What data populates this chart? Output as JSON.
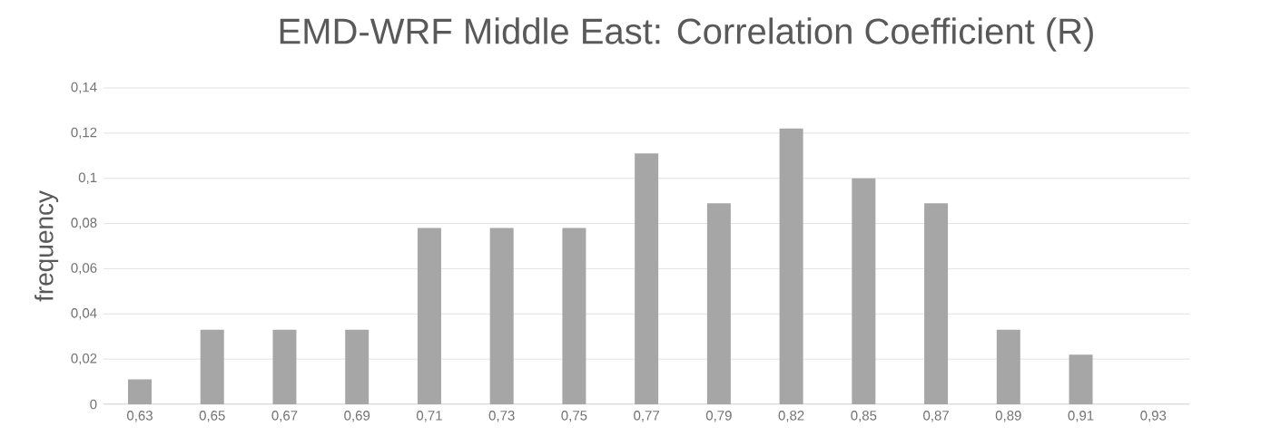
{
  "chart_data": {
    "type": "bar",
    "title": "EMD-WRF Middle East: Correlation Coefficient (R)",
    "ylabel": "frequency",
    "categories": [
      "0,63",
      "0,65",
      "0,67",
      "0,69",
      "0,71",
      "0,73",
      "0,75",
      "0,77",
      "0,79",
      "0,82",
      "0,85",
      "0,87",
      "0,89",
      "0,91",
      "0,93"
    ],
    "values": [
      0.011,
      0.033,
      0.033,
      0.033,
      0.078,
      0.078,
      0.078,
      0.111,
      0.089,
      0.122,
      0.1,
      0.089,
      0.033,
      0.022,
      0
    ],
    "color": "#a6a6a6",
    "ylim": [
      0,
      0.14
    ],
    "yticks": [
      0,
      {
        "value": 0.02,
        "label": "0,02"
      },
      {
        "value": 0.04,
        "label": "0,04"
      },
      {
        "value": 0.06,
        "label": "0,06"
      },
      {
        "value": 0.08,
        "label": "0,08"
      },
      {
        "value": 0.1,
        "label": "0,1"
      },
      {
        "value": 0.12,
        "label": "0,12"
      },
      {
        "value": 0.14,
        "label": "0,14"
      }
    ],
    "grid": "y"
  }
}
